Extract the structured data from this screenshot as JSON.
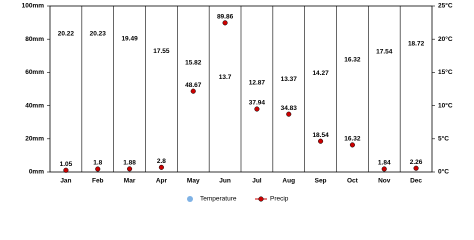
{
  "chart_data": {
    "type": "line",
    "categories": [
      "Jan",
      "Feb",
      "Mar",
      "Apr",
      "May",
      "Jun",
      "Jul",
      "Aug",
      "Sep",
      "Oct",
      "Nov",
      "Dec"
    ],
    "series": [
      {
        "name": "Temperature",
        "color": "#7fb2e5",
        "axis": "y2",
        "values": [
          20.22,
          20.23,
          19.49,
          17.55,
          15.82,
          13.7,
          12.87,
          13.37,
          14.27,
          16.32,
          17.54,
          18.72
        ]
      },
      {
        "name": "Precip",
        "color": "#cc0000",
        "values": [
          1.05,
          1.8,
          1.88,
          2.8,
          48.67,
          89.86,
          37.94,
          34.83,
          18.54,
          16.32,
          1.84,
          2.26
        ]
      }
    ],
    "ylim": [
      0,
      100
    ],
    "yticks": [
      {
        "value": 0,
        "label": "0mm"
      },
      {
        "value": 20,
        "label": "20mm"
      },
      {
        "value": 40,
        "label": "40mm"
      },
      {
        "value": 60,
        "label": "60mm"
      },
      {
        "value": 80,
        "label": "80mm"
      },
      {
        "value": 100,
        "label": "100mm"
      }
    ],
    "y2lim": [
      0,
      25
    ],
    "y2ticks": [
      {
        "value": 0,
        "label": "0°C"
      },
      {
        "value": 5,
        "label": "5°C"
      },
      {
        "value": 10,
        "label": "10°C"
      },
      {
        "value": 15,
        "label": "15°C"
      },
      {
        "value": 20,
        "label": "20°C"
      },
      {
        "value": 25,
        "label": "25°C"
      }
    ]
  }
}
